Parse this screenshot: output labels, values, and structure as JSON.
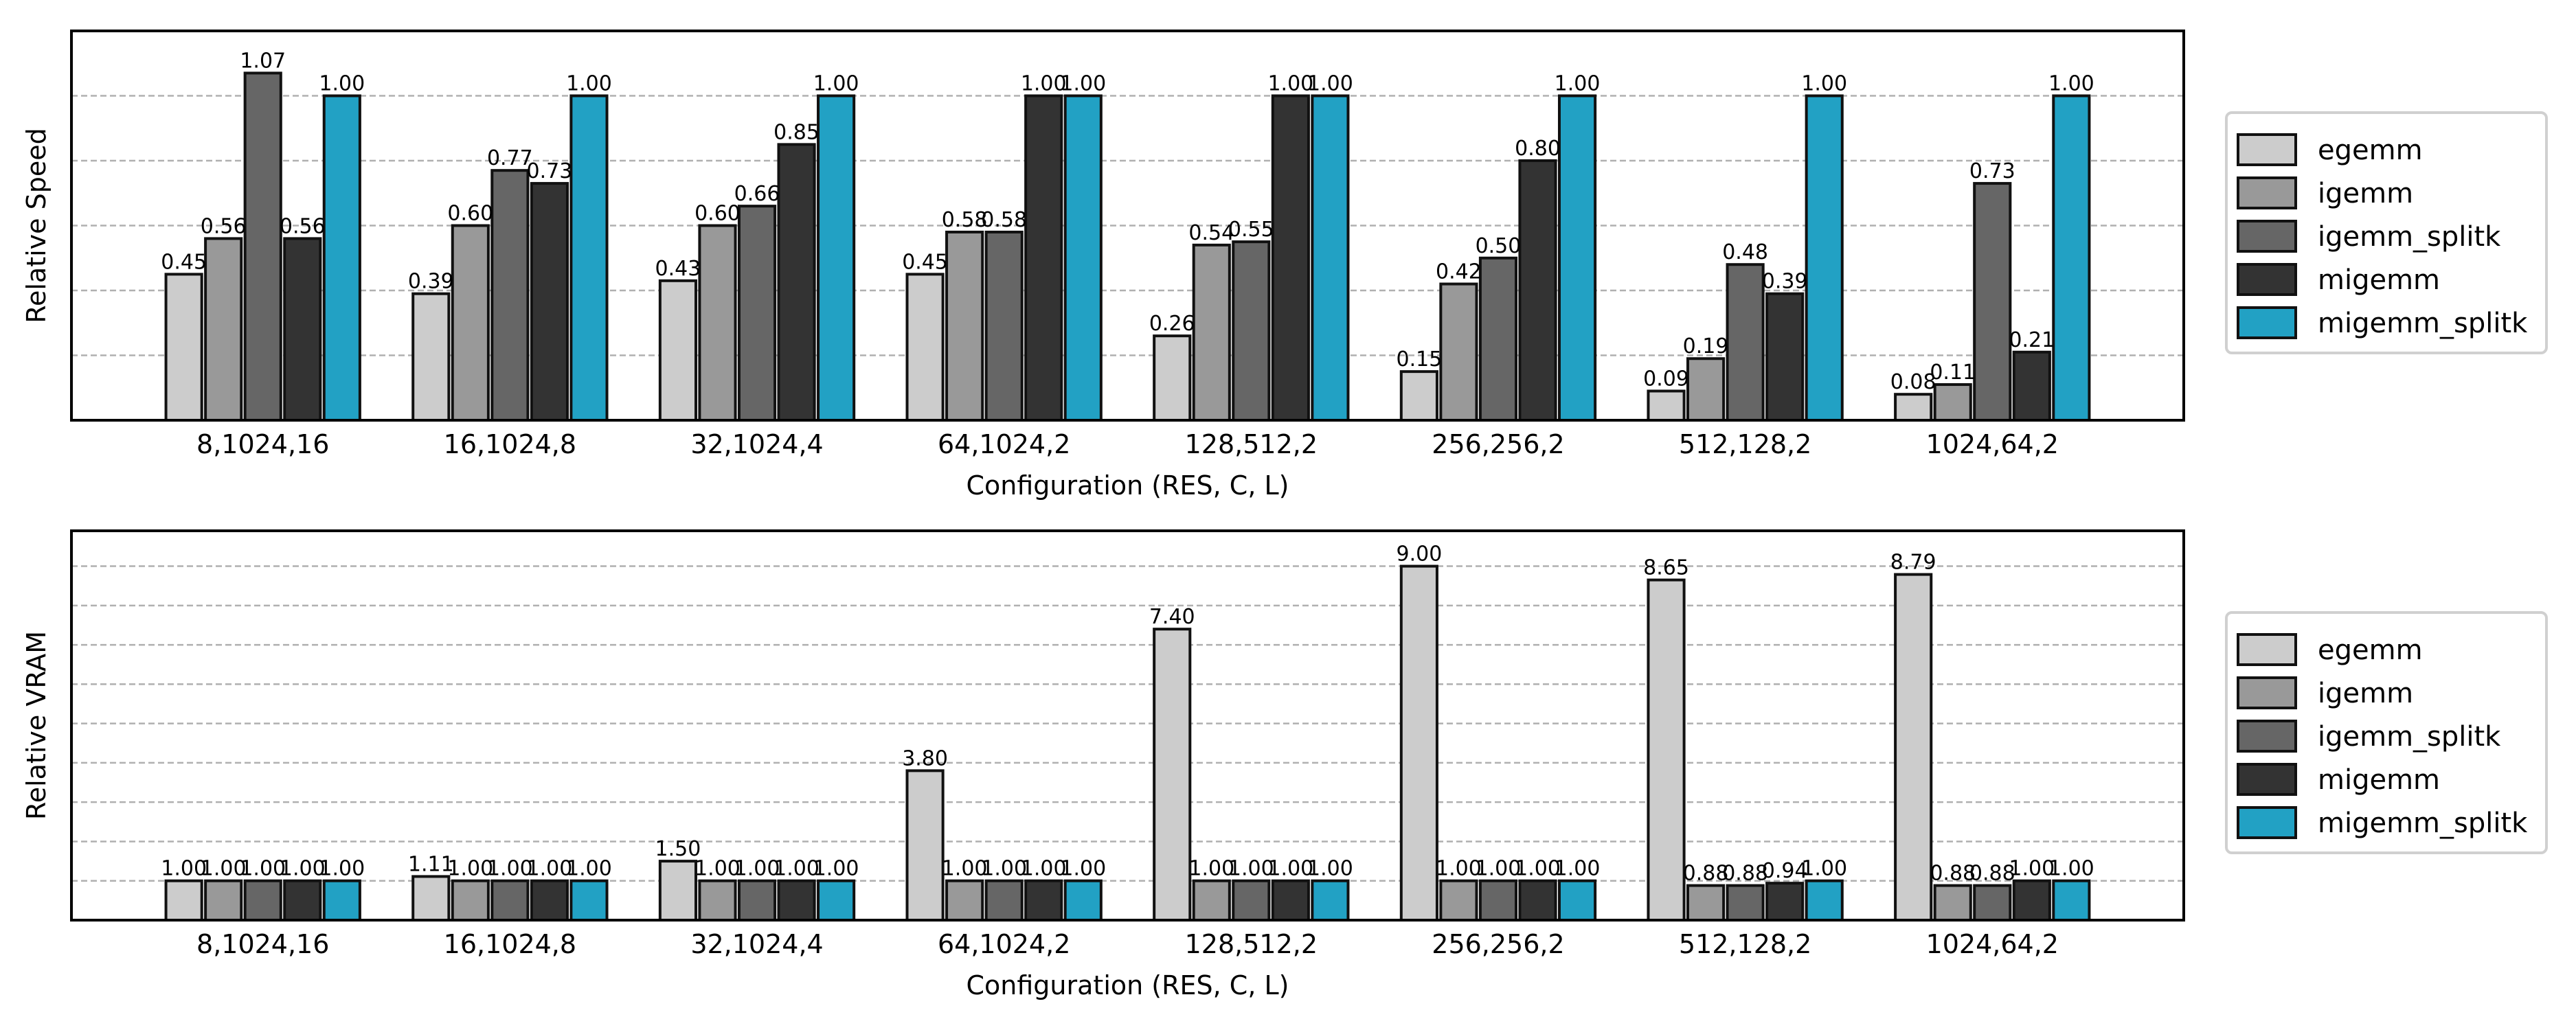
{
  "chart_data": [
    {
      "type": "bar",
      "title": "",
      "xlabel": "Configuration (RES, C, L)",
      "ylabel": "Relative Speed",
      "ylim": [
        0,
        1.2
      ],
      "yticks_gridlines": [
        0.2,
        0.4,
        0.6,
        0.8,
        1.0
      ],
      "grid": true,
      "legend_position": "right",
      "categories": [
        "8,1024,16",
        "16,1024,8",
        "32,1024,4",
        "64,1024,2",
        "128,512,2",
        "256,256,2",
        "512,128,2",
        "1024,64,2"
      ],
      "series": [
        {
          "name": "egemm",
          "color": "#cccccc",
          "values": [
            0.45,
            0.39,
            0.43,
            0.45,
            0.26,
            0.15,
            0.09,
            0.08
          ]
        },
        {
          "name": "igemm",
          "color": "#999999",
          "values": [
            0.56,
            0.6,
            0.6,
            0.58,
            0.54,
            0.42,
            0.19,
            0.11
          ]
        },
        {
          "name": "igemm_splitk",
          "color": "#666666",
          "values": [
            1.07,
            0.77,
            0.66,
            0.58,
            0.55,
            0.5,
            0.48,
            0.73
          ]
        },
        {
          "name": "migemm",
          "color": "#333333",
          "values": [
            0.56,
            0.73,
            0.85,
            1.0,
            1.0,
            0.8,
            0.39,
            0.21
          ]
        },
        {
          "name": "migemm_splitk",
          "color": "#22a1c4",
          "values": [
            1.0,
            1.0,
            1.0,
            1.0,
            1.0,
            1.0,
            1.0,
            1.0
          ]
        }
      ]
    },
    {
      "type": "bar",
      "title": "",
      "xlabel": "Configuration (RES, C, L)",
      "ylabel": "Relative VRAM",
      "ylim": [
        0,
        9.9
      ],
      "yticks_gridlines": [
        1,
        2,
        3,
        4,
        5,
        6,
        7,
        8,
        9
      ],
      "grid": true,
      "legend_position": "right",
      "categories": [
        "8,1024,16",
        "16,1024,8",
        "32,1024,4",
        "64,1024,2",
        "128,512,2",
        "256,256,2",
        "512,128,2",
        "1024,64,2"
      ],
      "series": [
        {
          "name": "egemm",
          "color": "#cccccc",
          "values": [
            1.0,
            1.11,
            1.5,
            3.8,
            7.4,
            9.0,
            8.65,
            8.79
          ]
        },
        {
          "name": "igemm",
          "color": "#999999",
          "values": [
            1.0,
            1.0,
            1.0,
            1.0,
            1.0,
            1.0,
            0.88,
            0.88
          ]
        },
        {
          "name": "igemm_splitk",
          "color": "#666666",
          "values": [
            1.0,
            1.0,
            1.0,
            1.0,
            1.0,
            1.0,
            0.88,
            0.88
          ]
        },
        {
          "name": "migemm",
          "color": "#333333",
          "values": [
            1.0,
            1.0,
            1.0,
            1.0,
            1.0,
            1.0,
            0.94,
            1.0
          ]
        },
        {
          "name": "migemm_splitk",
          "color": "#22a1c4",
          "values": [
            1.0,
            1.0,
            1.0,
            1.0,
            1.0,
            1.0,
            1.0,
            1.0
          ]
        }
      ]
    }
  ]
}
